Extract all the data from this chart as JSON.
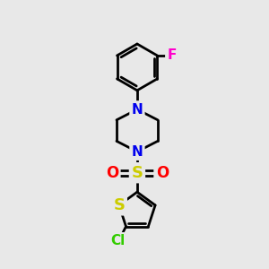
{
  "background_color": "#e8e8e8",
  "bond_color": "#000000",
  "bond_width": 2.0,
  "atom_colors": {
    "N": "#0000ee",
    "S_sulfonyl": "#cccc00",
    "S_thiophene": "#cccc00",
    "O": "#ff0000",
    "F": "#ff00cc",
    "Cl": "#33cc00",
    "C": "#000000"
  },
  "font_size_atoms": 11,
  "figsize": [
    3.0,
    3.0
  ],
  "dpi": 100
}
